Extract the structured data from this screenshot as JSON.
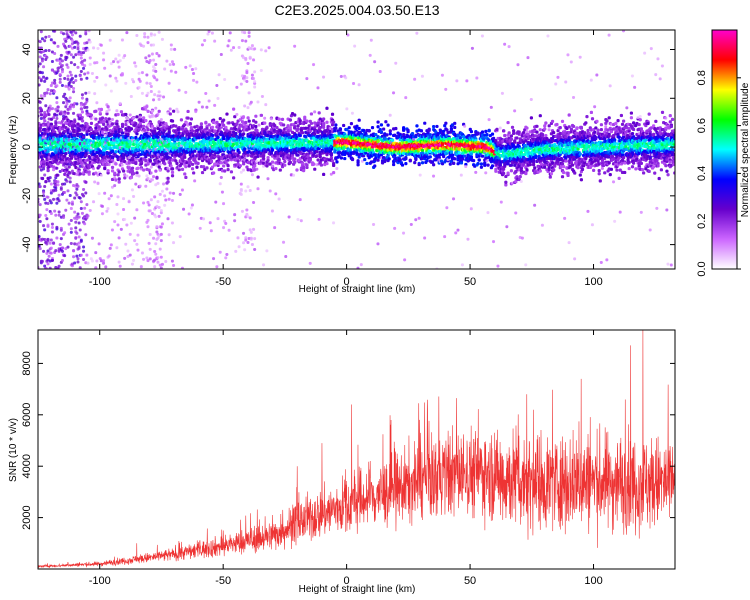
{
  "title": "C2E3.2025.004.03.50.E13",
  "chart_data": [
    {
      "type": "heatmap",
      "xlabel": "Height of straight line (km)",
      "ylabel": "Frequency (Hz)",
      "xlim": [
        -125,
        133
      ],
      "ylim": [
        -50,
        48
      ],
      "xticks": [
        -100,
        -50,
        0,
        50,
        100
      ],
      "yticks": [
        -40,
        -20,
        0,
        20,
        40
      ],
      "colorbar": {
        "label": "Normalized spectral amplitude",
        "range": [
          0,
          1
        ],
        "ticks": [
          "0.0",
          "0.2",
          "0.4",
          "0.6",
          "0.8"
        ],
        "colors": [
          "#ffffff",
          "#cc66ff",
          "#6600cc",
          "#0000ff",
          "#00ffff",
          "#00ff00",
          "#ffff00",
          "#ff0000",
          "#ff00cc"
        ]
      },
      "ridge_center_hz": [
        {
          "x": -110,
          "y": 1
        },
        {
          "x": -60,
          "y": 1
        },
        {
          "x": 0,
          "y": 2
        },
        {
          "x": 10,
          "y": 1
        },
        {
          "x": 20,
          "y": 0
        },
        {
          "x": 40,
          "y": 1
        },
        {
          "x": 57,
          "y": 0
        },
        {
          "x": 62,
          "y": -3
        },
        {
          "x": 80,
          "y": -1
        },
        {
          "x": 100,
          "y": 0
        },
        {
          "x": 133,
          "y": 1
        }
      ]
    },
    {
      "type": "line",
      "xlabel": "Height of straight line (km)",
      "ylabel": "SNR (10 * v/v)",
      "xlim": [
        -125,
        133
      ],
      "ylim": [
        0,
        9300
      ],
      "xticks": [
        -100,
        -50,
        0,
        50,
        100
      ],
      "yticks": [
        2000,
        4000,
        6000,
        8000
      ],
      "color": "#ee3333",
      "trend": [
        {
          "x": -125,
          "y": 100
        },
        {
          "x": -100,
          "y": 200
        },
        {
          "x": -75,
          "y": 500
        },
        {
          "x": -50,
          "y": 900
        },
        {
          "x": -30,
          "y": 1300
        },
        {
          "x": -20,
          "y": 1800
        },
        {
          "x": 0,
          "y": 2500
        },
        {
          "x": 20,
          "y": 3100
        },
        {
          "x": 40,
          "y": 3700
        },
        {
          "x": 55,
          "y": 3800
        },
        {
          "x": 60,
          "y": 3600
        },
        {
          "x": 80,
          "y": 3400
        },
        {
          "x": 110,
          "y": 3400
        },
        {
          "x": 133,
          "y": 3300
        }
      ],
      "peaks": [
        {
          "x": -85,
          "y": 1000
        },
        {
          "x": -50,
          "y": 1500
        },
        {
          "x": -30,
          "y": 2100
        },
        {
          "x": -20,
          "y": 4000
        },
        {
          "x": -10,
          "y": 4900
        },
        {
          "x": 2,
          "y": 6400
        },
        {
          "x": 18,
          "y": 5800
        },
        {
          "x": 60,
          "y": 5300
        },
        {
          "x": 73,
          "y": 6800
        },
        {
          "x": 95,
          "y": 7400
        },
        {
          "x": 115,
          "y": 8700
        },
        {
          "x": 120,
          "y": 9300
        }
      ]
    }
  ]
}
